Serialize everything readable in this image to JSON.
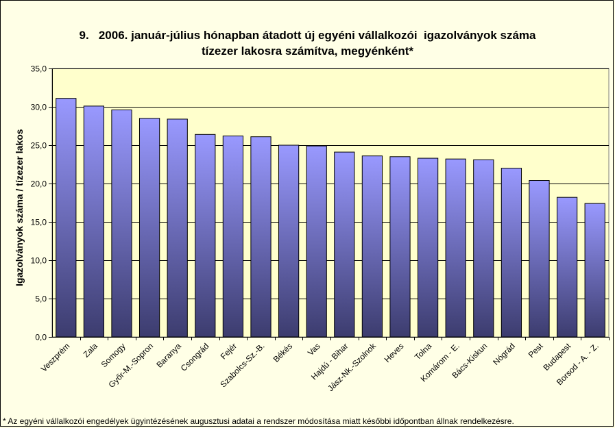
{
  "chart_data": {
    "type": "bar",
    "title_lines": [
      "9.   2006. január-július hónapban átadott új egyéni vállalkozói  igazolványok száma",
      "tízezer lakosra számítva, megyénként*"
    ],
    "ylabel": "Igazolványok száma / tízezer lakos",
    "xlabel": "",
    "ylim": [
      0,
      35
    ],
    "yticks": [
      "0,0",
      "5,0",
      "10,0",
      "15,0",
      "20,0",
      "25,0",
      "30,0",
      "35,0"
    ],
    "grid": true,
    "legend": "none",
    "categories": [
      "Veszprém",
      "Zala",
      "Somogy",
      "Győr-M.-Sopron",
      "Baranya",
      "Csongrád",
      "Fejér",
      "Szabolcs-Sz.-B.",
      "Békés",
      "Vas",
      "Hajdú - Bihar",
      "Jász-Nk.-Szolnok",
      "Heves",
      "Tolna",
      "Komárom - E.",
      "Bács-Kiskun",
      "Nógrád",
      "Pest",
      "Budapest",
      "Borsod - A. - Z."
    ],
    "values": [
      31.1,
      30.1,
      29.6,
      28.5,
      28.4,
      26.4,
      26.2,
      26.1,
      25.0,
      24.9,
      24.1,
      23.6,
      23.5,
      23.3,
      23.2,
      23.1,
      22.0,
      20.4,
      18.2,
      17.4
    ],
    "colors": {
      "bar_top": "#9999ff",
      "bar_bottom": "#3c3c6e",
      "plot_bg": "#ffffcc",
      "page_bg": "#ffffe6"
    }
  },
  "footnote": "* Az egyéni vállalkozói engedélyek  ügyintézésének augusztusi adatai a rendszer módosítása miatt későbbi időpontban állnak rendelkezésre."
}
